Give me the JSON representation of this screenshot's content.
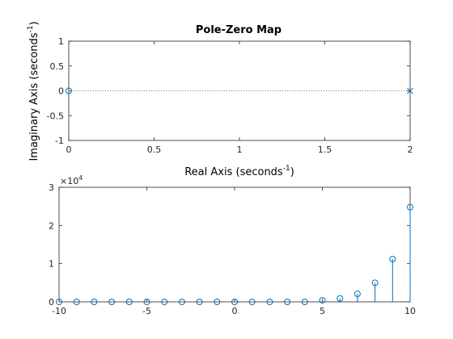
{
  "chart_data": [
    {
      "type": "scatter",
      "title": "Pole-Zero Map",
      "xlabel": "Real Axis (seconds",
      "xlabel_sup": "-1",
      "xlabel_suffix": ")",
      "ylabel": "Imaginary Axis (seconds",
      "ylabel_sup": "-1",
      "ylabel_suffix": ")",
      "xlim": [
        0,
        2
      ],
      "ylim": [
        -1,
        1
      ],
      "xticks": [
        0,
        0.5,
        1,
        1.5,
        2
      ],
      "xtick_labels": [
        "0",
        "0.5",
        "1",
        "1.5",
        "2"
      ],
      "yticks": [
        1,
        0.5,
        0,
        -0.5,
        -1
      ],
      "ytick_labels": [
        "1",
        "0.5",
        "0",
        "-0.5",
        "-1"
      ],
      "zero_line": true,
      "series": [
        {
          "name": "zeros",
          "marker": "o",
          "points": [
            [
              0,
              0
            ]
          ]
        },
        {
          "name": "poles",
          "marker": "x",
          "points": [
            [
              2,
              0
            ]
          ]
        }
      ]
    },
    {
      "type": "stem",
      "xlim": [
        -10,
        10
      ],
      "ylim": [
        0,
        30000
      ],
      "xticks": [
        -10,
        -5,
        0,
        5,
        10
      ],
      "xtick_labels": [
        "-10",
        "-5",
        "0",
        "5",
        "10"
      ],
      "yticks": [
        0,
        10000,
        20000,
        30000
      ],
      "ytick_labels": [
        "0",
        "1",
        "2",
        "3"
      ],
      "exponent_base": "×10",
      "exponent": "4",
      "x": [
        -10,
        -9,
        -8,
        -7,
        -6,
        -5,
        -4,
        -3,
        -2,
        -1,
        0,
        1,
        2,
        3,
        4,
        5,
        6,
        7,
        8,
        9,
        10
      ],
      "y": [
        0,
        0,
        0,
        0,
        0,
        0,
        0,
        0,
        0,
        0,
        0,
        0,
        0,
        0,
        0,
        400,
        900,
        2100,
        5000,
        11200,
        24800
      ]
    }
  ],
  "colors": {
    "series": "#0072bd",
    "axes": "#262626",
    "zero_line": "#555555"
  }
}
